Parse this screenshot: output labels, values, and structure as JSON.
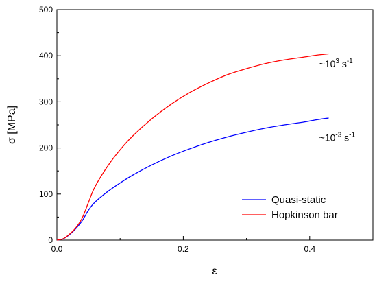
{
  "chart_data": {
    "type": "line",
    "xlabel": "ε",
    "ylabel": "σ [MPa]",
    "xlim": [
      0,
      0.5
    ],
    "ylim": [
      0,
      500
    ],
    "x_ticks": [
      {
        "value": 0.0,
        "label": "0.0"
      },
      {
        "value": 0.2,
        "label": "0.2"
      },
      {
        "value": 0.4,
        "label": "0.4"
      }
    ],
    "y_ticks": [
      {
        "value": 0,
        "label": "0"
      },
      {
        "value": 100,
        "label": "100"
      },
      {
        "value": 200,
        "label": "200"
      },
      {
        "value": 300,
        "label": "300"
      },
      {
        "value": 400,
        "label": "400"
      },
      {
        "value": 500,
        "label": "500"
      }
    ],
    "grid": false,
    "legend_position": "bottom-right",
    "series": [
      {
        "name": "Quasi-static",
        "color": "#0000ff",
        "points": [
          [
            0.0,
            0
          ],
          [
            0.01,
            3
          ],
          [
            0.02,
            12
          ],
          [
            0.03,
            25
          ],
          [
            0.04,
            42
          ],
          [
            0.05,
            65
          ],
          [
            0.06,
            82
          ],
          [
            0.08,
            105
          ],
          [
            0.1,
            124
          ],
          [
            0.12,
            141
          ],
          [
            0.15,
            163
          ],
          [
            0.18,
            182
          ],
          [
            0.21,
            198
          ],
          [
            0.24,
            212
          ],
          [
            0.27,
            224
          ],
          [
            0.3,
            234
          ],
          [
            0.33,
            243
          ],
          [
            0.36,
            250
          ],
          [
            0.39,
            256
          ],
          [
            0.41,
            261
          ],
          [
            0.43,
            265
          ]
        ]
      },
      {
        "name": "Hopkinson bar",
        "color": "#ff0000",
        "points": [
          [
            0.0,
            0
          ],
          [
            0.01,
            3
          ],
          [
            0.02,
            13
          ],
          [
            0.03,
            27
          ],
          [
            0.04,
            48
          ],
          [
            0.05,
            82
          ],
          [
            0.06,
            115
          ],
          [
            0.08,
            160
          ],
          [
            0.1,
            196
          ],
          [
            0.12,
            226
          ],
          [
            0.15,
            263
          ],
          [
            0.18,
            294
          ],
          [
            0.21,
            320
          ],
          [
            0.24,
            341
          ],
          [
            0.27,
            359
          ],
          [
            0.3,
            372
          ],
          [
            0.33,
            383
          ],
          [
            0.36,
            391
          ],
          [
            0.39,
            397
          ],
          [
            0.41,
            401
          ],
          [
            0.43,
            404
          ]
        ]
      }
    ],
    "annotations": [
      {
        "base": "~10",
        "exp": "3",
        "unit": "s",
        "unit_exp": "-1",
        "x": 0.415,
        "y": 375
      },
      {
        "base": "~10",
        "exp": "-3",
        "unit": "s",
        "unit_exp": "-1",
        "x": 0.415,
        "y": 215
      }
    ]
  }
}
